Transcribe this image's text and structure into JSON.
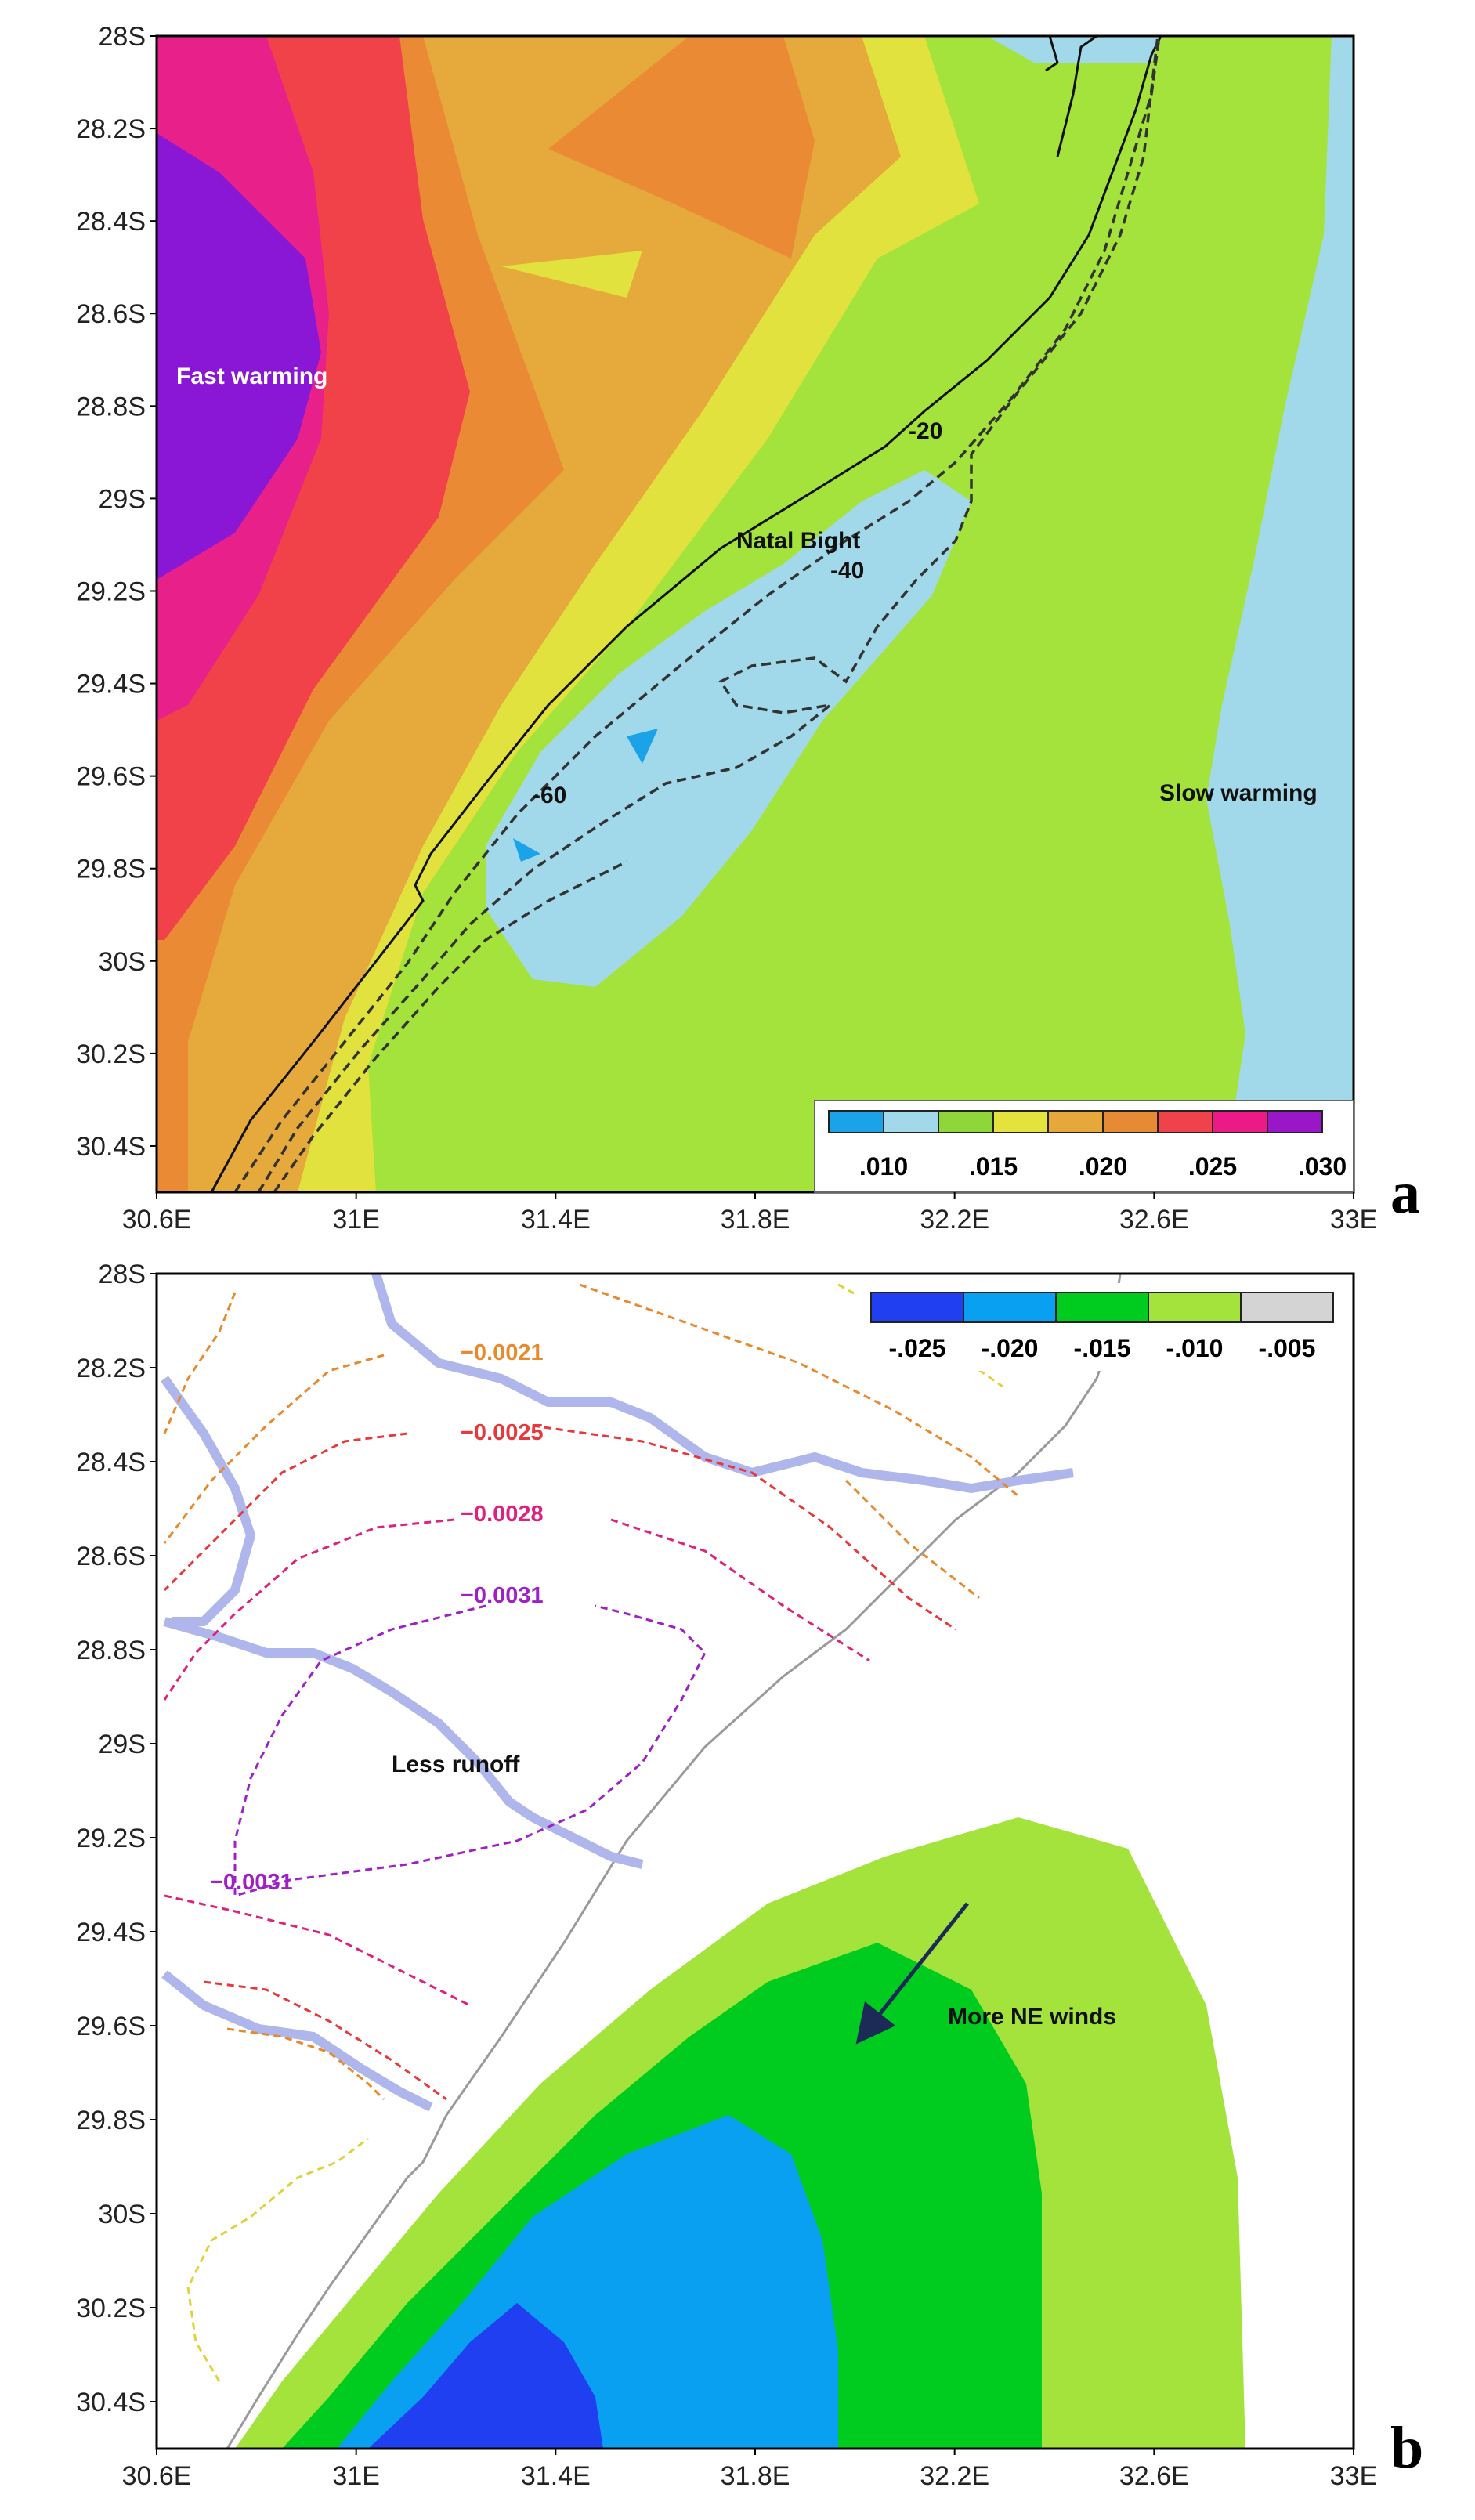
{
  "panel_a": {
    "letter": "a",
    "annotations": {
      "fast_warming": "Fast warming",
      "slow_warming": "Slow warming",
      "natal_bight": "Natal Bight"
    },
    "depth_labels": [
      "-20",
      "-40",
      "-60"
    ],
    "legend": {
      "colors": [
        "#1aa3e8",
        "#a2d9ea",
        "#8fd63a",
        "#e4e23c",
        "#e6a83b",
        "#e78a35",
        "#f0424a",
        "#ec1a86",
        "#9a17c8"
      ],
      "labels": [
        ".010",
        ".015",
        ".020",
        ".025",
        ".030"
      ]
    },
    "field_colors": {
      "purple": "#8a16d6",
      "magenta": "#e8218a",
      "red": "#f14249",
      "orange": "#ea8a35",
      "amber": "#e6a93c",
      "yellow": "#e1e23d",
      "green": "#a3e33c",
      "lightblue": "#a2d9ea",
      "blue": "#1aa3e8"
    }
  },
  "panel_b": {
    "letter": "b",
    "annotations": {
      "less_runoff": "Less runoff",
      "more_ne_winds": "More NE winds"
    },
    "contour_labels": [
      {
        "text": "−0.0021",
        "color": "#e88a2c"
      },
      {
        "text": "−0.0025",
        "color": "#e8383b"
      },
      {
        "text": "−0.0028",
        "color": "#e0207f"
      },
      {
        "text": "−0.0031",
        "color": "#a020c8"
      },
      {
        "text": "−0.0031",
        "color": "#a020c8"
      }
    ],
    "legend": {
      "colors": [
        "#1f3ff0",
        "#0aa0f2",
        "#00cc1f",
        "#a3e33c",
        "#d4d4d4"
      ],
      "labels": [
        "-.025",
        "-.020",
        "-.015",
        "-.010",
        "-.005"
      ]
    },
    "field_colors": {
      "darkblue": "#1f3ff0",
      "blue": "#0aa0f2",
      "green": "#00cc1f",
      "lightgreen": "#a3e33c"
    }
  },
  "axes": {
    "lat_ticks": [
      "28S",
      "28.2S",
      "28.4S",
      "28.6S",
      "28.8S",
      "29S",
      "29.2S",
      "29.4S",
      "29.6S",
      "29.8S",
      "30S",
      "30.2S",
      "30.4S"
    ],
    "lon_ticks": [
      "30.6E",
      "31E",
      "31.4E",
      "31.8E",
      "32.2E",
      "32.6E",
      "33E"
    ]
  }
}
